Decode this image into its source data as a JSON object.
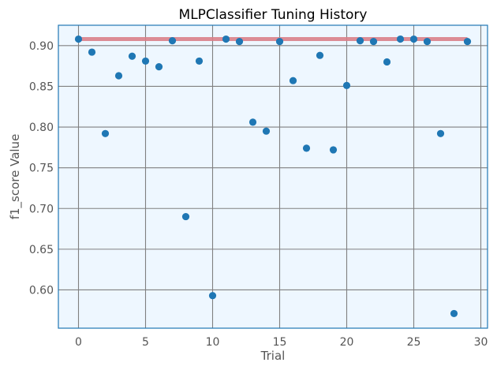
{
  "chart_data": {
    "type": "scatter",
    "title": "MLPClassifier Tuning History",
    "xlabel": "Trial",
    "ylabel": "f1_score Value",
    "xlim": [
      -1.5,
      30.5
    ],
    "ylim": [
      0.553,
      0.925
    ],
    "xticks": [
      0,
      5,
      10,
      15,
      20,
      25,
      30
    ],
    "yticks": [
      0.6,
      0.65,
      0.7,
      0.75,
      0.8,
      0.85,
      0.9
    ],
    "xtick_labels": [
      "0",
      "5",
      "10",
      "15",
      "20",
      "25",
      "30"
    ],
    "ytick_labels": [
      "0.60",
      "0.65",
      "0.70",
      "0.75",
      "0.80",
      "0.85",
      "0.90"
    ],
    "grid": true,
    "background_color": "#eef7ff",
    "frame_color": "#1f77b4",
    "grid_color": "#808080",
    "point_color": "#1f77b4",
    "best_line_color": "#d9808a",
    "points": {
      "x": [
        0,
        1,
        2,
        3,
        4,
        5,
        6,
        7,
        8,
        9,
        10,
        11,
        12,
        13,
        14,
        15,
        16,
        17,
        18,
        19,
        20,
        21,
        22,
        23,
        24,
        25,
        26,
        27,
        28,
        29
      ],
      "y": [
        0.908,
        0.892,
        0.792,
        0.863,
        0.887,
        0.881,
        0.874,
        0.906,
        0.69,
        0.881,
        0.593,
        0.908,
        0.905,
        0.806,
        0.795,
        0.905,
        0.857,
        0.774,
        0.888,
        0.772,
        0.851,
        0.906,
        0.905,
        0.88,
        0.908,
        0.908,
        0.905,
        0.792,
        0.571,
        0.905
      ]
    },
    "best_line": {
      "x": [
        0,
        29
      ],
      "y": [
        0.908,
        0.908
      ]
    }
  }
}
